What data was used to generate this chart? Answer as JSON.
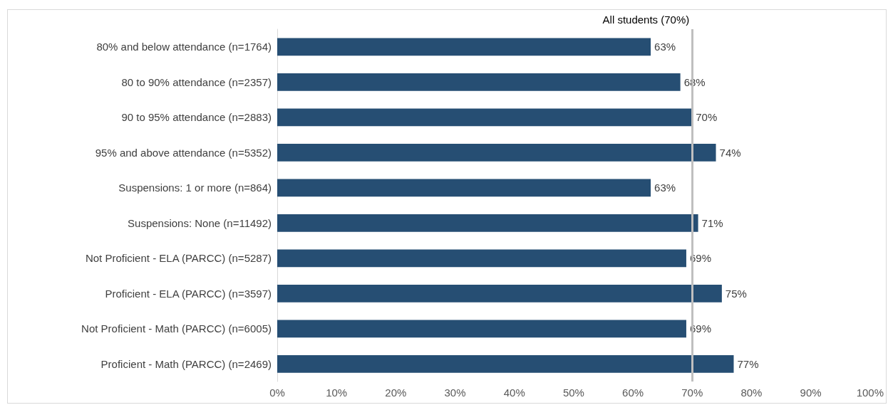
{
  "chart_data": {
    "type": "bar",
    "orientation": "horizontal",
    "categories": [
      "80% and below attendance (n=1764)",
      "80 to 90% attendance (n=2357)",
      "90 to 95% attendance (n=2883)",
      "95% and above attendance (n=5352)",
      "Suspensions: 1 or more (n=864)",
      "Suspensions: None (n=11492)",
      "Not Proficient - ELA (PARCC) (n=5287)",
      "Proficient - ELA (PARCC) (n=3597)",
      "Not Proficient - Math (PARCC) (n=6005)",
      "Proficient - Math (PARCC) (n=2469)"
    ],
    "values": [
      63,
      68,
      70,
      74,
      63,
      71,
      69,
      75,
      69,
      77
    ],
    "value_labels": [
      "63%",
      "68%",
      "70%",
      "74%",
      "63%",
      "71%",
      "69%",
      "75%",
      "69%",
      "77%"
    ],
    "color": "#264e73",
    "xlim": [
      0,
      100
    ],
    "xticks": [
      {
        "value": 0,
        "label": "0%"
      },
      {
        "value": 10,
        "label": "10%"
      },
      {
        "value": 20,
        "label": "20%"
      },
      {
        "value": 30,
        "label": "30%"
      },
      {
        "value": 40,
        "label": "40%"
      },
      {
        "value": 50,
        "label": "50%"
      },
      {
        "value": 60,
        "label": "60%"
      },
      {
        "value": 70,
        "label": "70%"
      },
      {
        "value": 80,
        "label": "80%"
      },
      {
        "value": 90,
        "label": "90%"
      },
      {
        "value": 100,
        "label": "100%"
      }
    ],
    "ref_lines": [
      {
        "axis": "x",
        "value": 70,
        "label": "All students (70%)",
        "color": "#bfbfbf"
      }
    ],
    "grid": false
  }
}
